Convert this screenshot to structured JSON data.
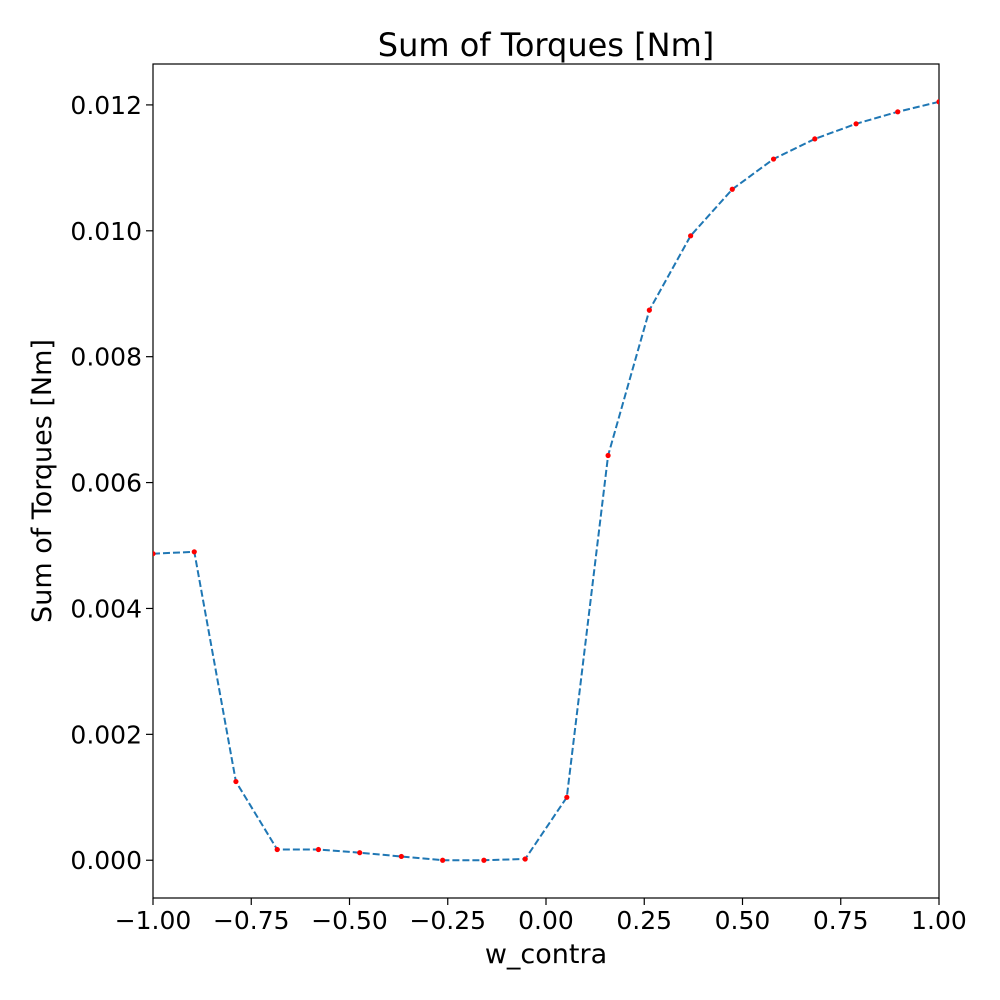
{
  "chart_data": {
    "type": "line",
    "title": "Sum of Torques [Nm]",
    "xlabel": "w_contra",
    "ylabel": "Sum of Torques [Nm]",
    "xlim": [
      -1.0,
      1.0
    ],
    "ylim": [
      -0.0006,
      0.01265
    ],
    "x_ticks": [
      "−1.00",
      "−0.75",
      "−0.50",
      "−0.25",
      "0.00",
      "0.25",
      "0.50",
      "0.75",
      "1.00"
    ],
    "x_tick_values": [
      -1.0,
      -0.75,
      -0.5,
      -0.25,
      0.0,
      0.25,
      0.5,
      0.75,
      1.0
    ],
    "y_ticks": [
      "0.000",
      "0.002",
      "0.004",
      "0.006",
      "0.008",
      "0.010",
      "0.012"
    ],
    "y_tick_values": [
      0.0,
      0.002,
      0.004,
      0.006,
      0.008,
      0.01,
      0.012
    ],
    "grid": false,
    "line_color": "#1f77b4",
    "marker_color": "#ff0000",
    "line_style": "dashed",
    "series": [
      {
        "x": [
          -1.0,
          -0.895,
          -0.789,
          -0.684,
          -0.579,
          -0.474,
          -0.368,
          -0.263,
          -0.158,
          -0.053,
          0.053,
          0.158,
          0.263,
          0.368,
          0.474,
          0.579,
          0.684,
          0.789,
          0.895,
          1.0
        ],
        "values": [
          0.00487,
          0.0049,
          0.00125,
          0.00017,
          0.00017,
          0.00012,
          6e-05,
          0.0,
          0.0,
          2e-05,
          0.001,
          0.00643,
          0.00874,
          0.00992,
          0.01066,
          0.01114,
          0.01146,
          0.0117,
          0.01189,
          0.01205
        ]
      }
    ]
  }
}
